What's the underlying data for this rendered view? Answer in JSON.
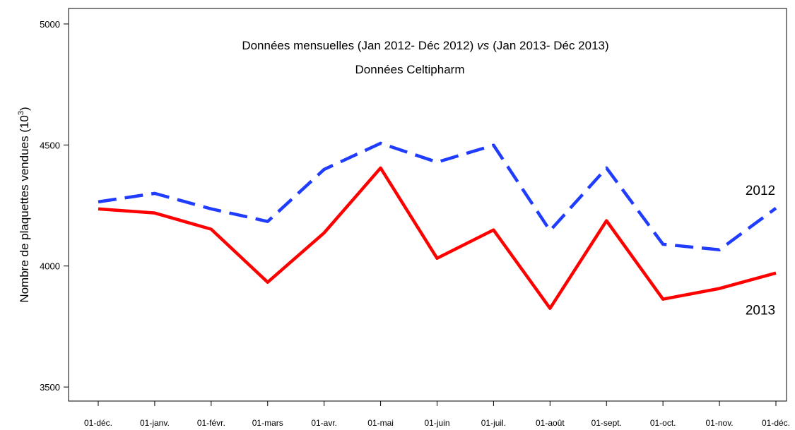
{
  "chart_data": {
    "type": "line",
    "title": {
      "before": "Données mensuelles (Jan 2012- Déc 2012)",
      "italic": "vs",
      "after": "(Jan 2013- Déc 2013)"
    },
    "subtitle": "Données Celtipharm",
    "y_label": {
      "main": "Nombre de plaquettes vendues (10",
      "sup": "3",
      "close": ")"
    },
    "categories": [
      "01-déc.",
      "01-janv.",
      "01-févr.",
      "01-mars",
      "01-avr.",
      "01-mai",
      "01-juin",
      "01-juil.",
      "01-août",
      "01-sept.",
      "01-oct.",
      "01-nov.",
      "01-déc."
    ],
    "series": [
      {
        "name": "2012",
        "color": "#1f3cff",
        "dash": "dashed",
        "values": [
          4265,
          4300,
          4236,
          4184,
          4399,
          4507,
          4429,
          4499,
          4146,
          4405,
          4090,
          4067,
          4239
        ]
      },
      {
        "name": "2013",
        "color": "#ff0000",
        "dash": "solid",
        "values": [
          4236,
          4219,
          4152,
          3933,
          4137,
          4405,
          4032,
          4149,
          3825,
          4187,
          3863,
          3907,
          3971
        ]
      }
    ],
    "ylim": [
      3442,
      5064
    ],
    "yticks": [
      3500,
      4000,
      4500,
      5000
    ],
    "grid": false
  }
}
